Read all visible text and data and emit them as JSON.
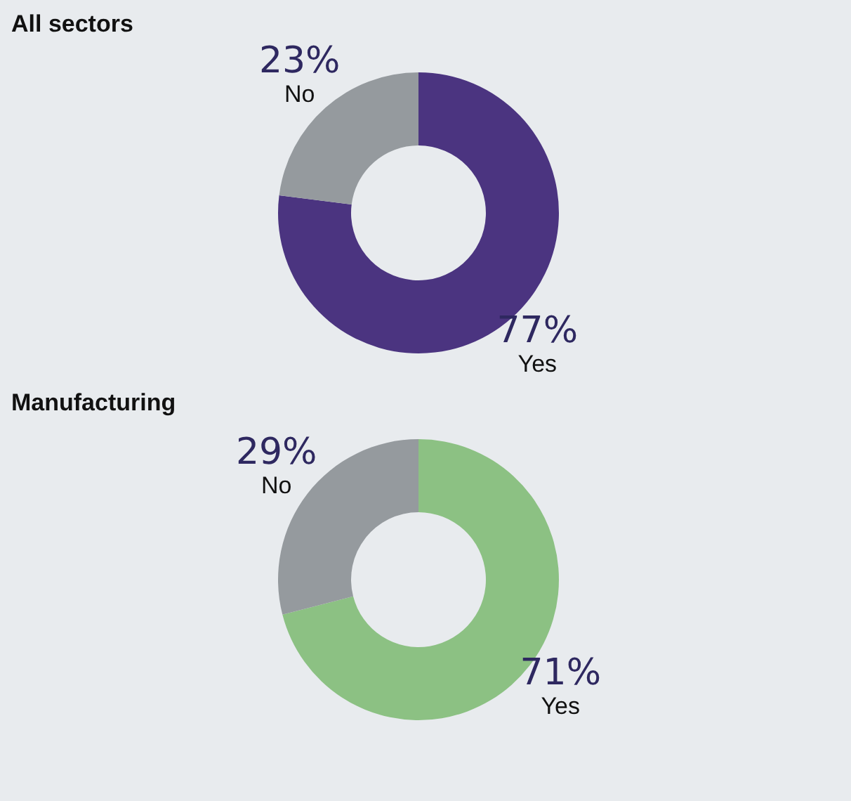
{
  "chart_data": [
    {
      "type": "donut",
      "title": "All sectors",
      "categories": [
        "Yes",
        "No"
      ],
      "values": [
        77,
        23
      ],
      "value_labels": [
        "77%",
        "23%"
      ],
      "colors": [
        "#4b3480",
        "#959a9e"
      ]
    },
    {
      "type": "donut",
      "title": "Manufacturing",
      "categories": [
        "Yes",
        "No"
      ],
      "values": [
        71,
        29
      ],
      "value_labels": [
        "71%",
        "29%"
      ],
      "colors": [
        "#8cc183",
        "#959a9e"
      ]
    }
  ]
}
